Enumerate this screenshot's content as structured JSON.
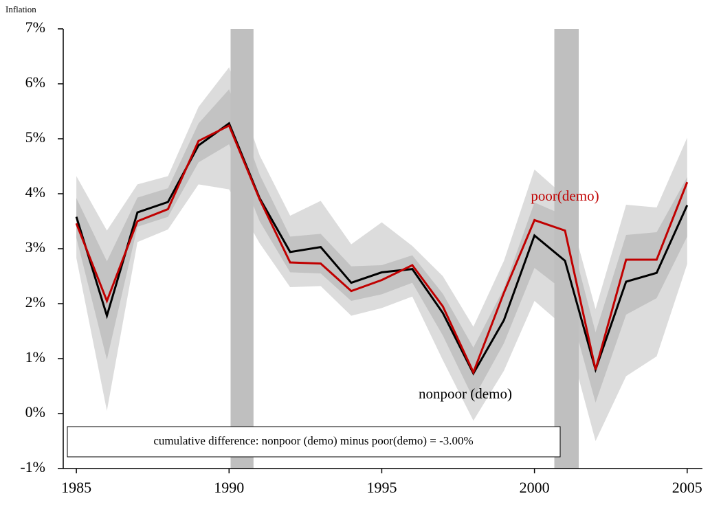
{
  "chart_data": {
    "type": "line",
    "y_axis_label": "Inflation",
    "x": [
      1985,
      1986,
      1987,
      1988,
      1989,
      1990,
      1991,
      1992,
      1993,
      1994,
      1995,
      1996,
      1997,
      1998,
      1999,
      2000,
      2001,
      2002,
      2003,
      2004,
      2005
    ],
    "series": [
      {
        "name": "nonpoor (demo)",
        "color": "#000000",
        "values": [
          3.58,
          1.78,
          3.66,
          3.85,
          4.88,
          5.28,
          3.92,
          2.94,
          3.03,
          2.38,
          2.57,
          2.63,
          1.83,
          0.73,
          1.7,
          3.24,
          2.78,
          0.8,
          2.4,
          2.56,
          3.79
        ]
      },
      {
        "name": "poor(demo)",
        "color": "#c00000",
        "values": [
          3.46,
          2.05,
          3.5,
          3.72,
          4.96,
          5.24,
          3.9,
          2.75,
          2.73,
          2.23,
          2.43,
          2.7,
          1.95,
          0.75,
          2.2,
          3.52,
          3.33,
          0.8,
          2.8,
          2.8,
          4.21
        ]
      }
    ],
    "bands": [
      {
        "color": "#dcdcdc",
        "upper": [
          4.32,
          3.33,
          4.17,
          4.32,
          5.58,
          6.3,
          4.7,
          3.6,
          3.87,
          3.08,
          3.48,
          3.05,
          2.5,
          1.58,
          2.78,
          4.44,
          3.95,
          1.9,
          3.8,
          3.75,
          5.02
        ],
        "lower": [
          2.83,
          0.05,
          3.12,
          3.35,
          4.17,
          4.08,
          3.1,
          2.3,
          2.32,
          1.78,
          1.92,
          2.13,
          0.97,
          -0.13,
          0.78,
          2.05,
          1.57,
          -0.5,
          0.68,
          1.04,
          2.72
        ]
      },
      {
        "color": "#c3c3c3",
        "upper": [
          3.92,
          2.77,
          3.93,
          4.1,
          5.28,
          5.9,
          4.35,
          3.22,
          3.27,
          2.68,
          2.7,
          2.88,
          2.18,
          1.2,
          2.28,
          3.84,
          3.6,
          1.48,
          3.25,
          3.3,
          4.3
        ],
        "lower": [
          3.2,
          0.98,
          3.4,
          3.58,
          4.57,
          4.9,
          3.5,
          2.57,
          2.55,
          2.05,
          2.17,
          2.38,
          1.42,
          0.27,
          1.28,
          2.65,
          2.22,
          0.2,
          1.8,
          2.1,
          3.22
        ]
      }
    ],
    "shaded_periods": [
      [
        1990.05,
        1990.8
      ],
      [
        2000.65,
        2001.45
      ]
    ],
    "shade_color": "#bfbfbf",
    "annotation": "cumulative difference: nonpoor (demo) minus poor(demo) = -3.00%",
    "xlim": [
      1984.57,
      2005.5
    ],
    "xticks": [
      1985,
      1990,
      1995,
      2000,
      2005
    ],
    "ylim": [
      -1,
      7
    ],
    "yticks": [
      {
        "value": -1,
        "label": "-1%"
      },
      {
        "value": 0,
        "label": "0%"
      },
      {
        "value": 1,
        "label": "1%"
      },
      {
        "value": 2,
        "label": "2%"
      },
      {
        "value": 3,
        "label": "3%"
      },
      {
        "value": 4,
        "label": "4%"
      },
      {
        "value": 5,
        "label": "5%"
      },
      {
        "value": 6,
        "label": "6%"
      },
      {
        "value": 7,
        "label": "7%"
      }
    ]
  }
}
